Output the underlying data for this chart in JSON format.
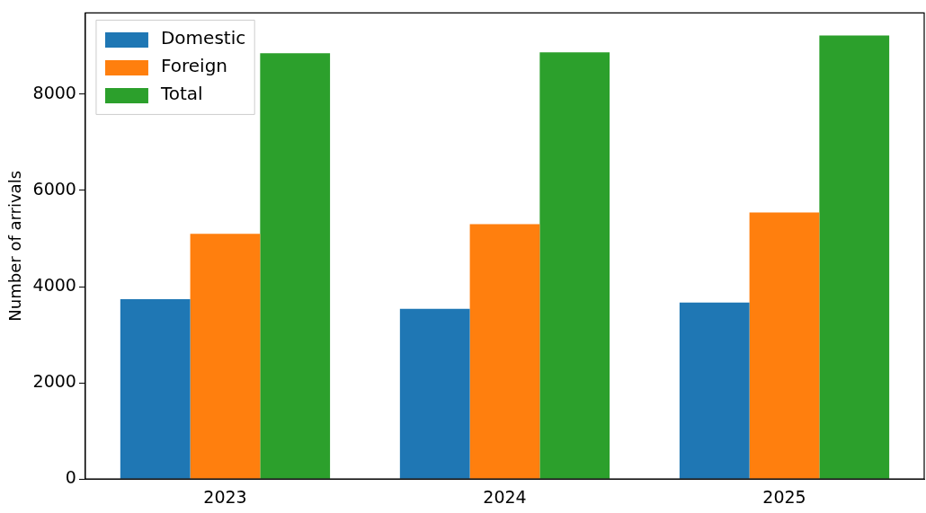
{
  "chart_data": {
    "type": "bar",
    "ylabel": "Number of arrivals",
    "categories": [
      "2023",
      "2024",
      "2025"
    ],
    "series": [
      {
        "name": "Domestic",
        "color": "#1f77b4",
        "values": [
          3740,
          3540,
          3670
        ]
      },
      {
        "name": "Foreign",
        "color": "#ff7f0e",
        "values": [
          5100,
          5300,
          5540
        ]
      },
      {
        "name": "Total",
        "color": "#2ca02c",
        "values": [
          8850,
          8870,
          9220
        ]
      }
    ],
    "ylim": [
      0,
      9690
    ],
    "yticks": [
      0,
      2000,
      4000,
      6000,
      8000
    ],
    "grid": false,
    "legend": "top left"
  }
}
